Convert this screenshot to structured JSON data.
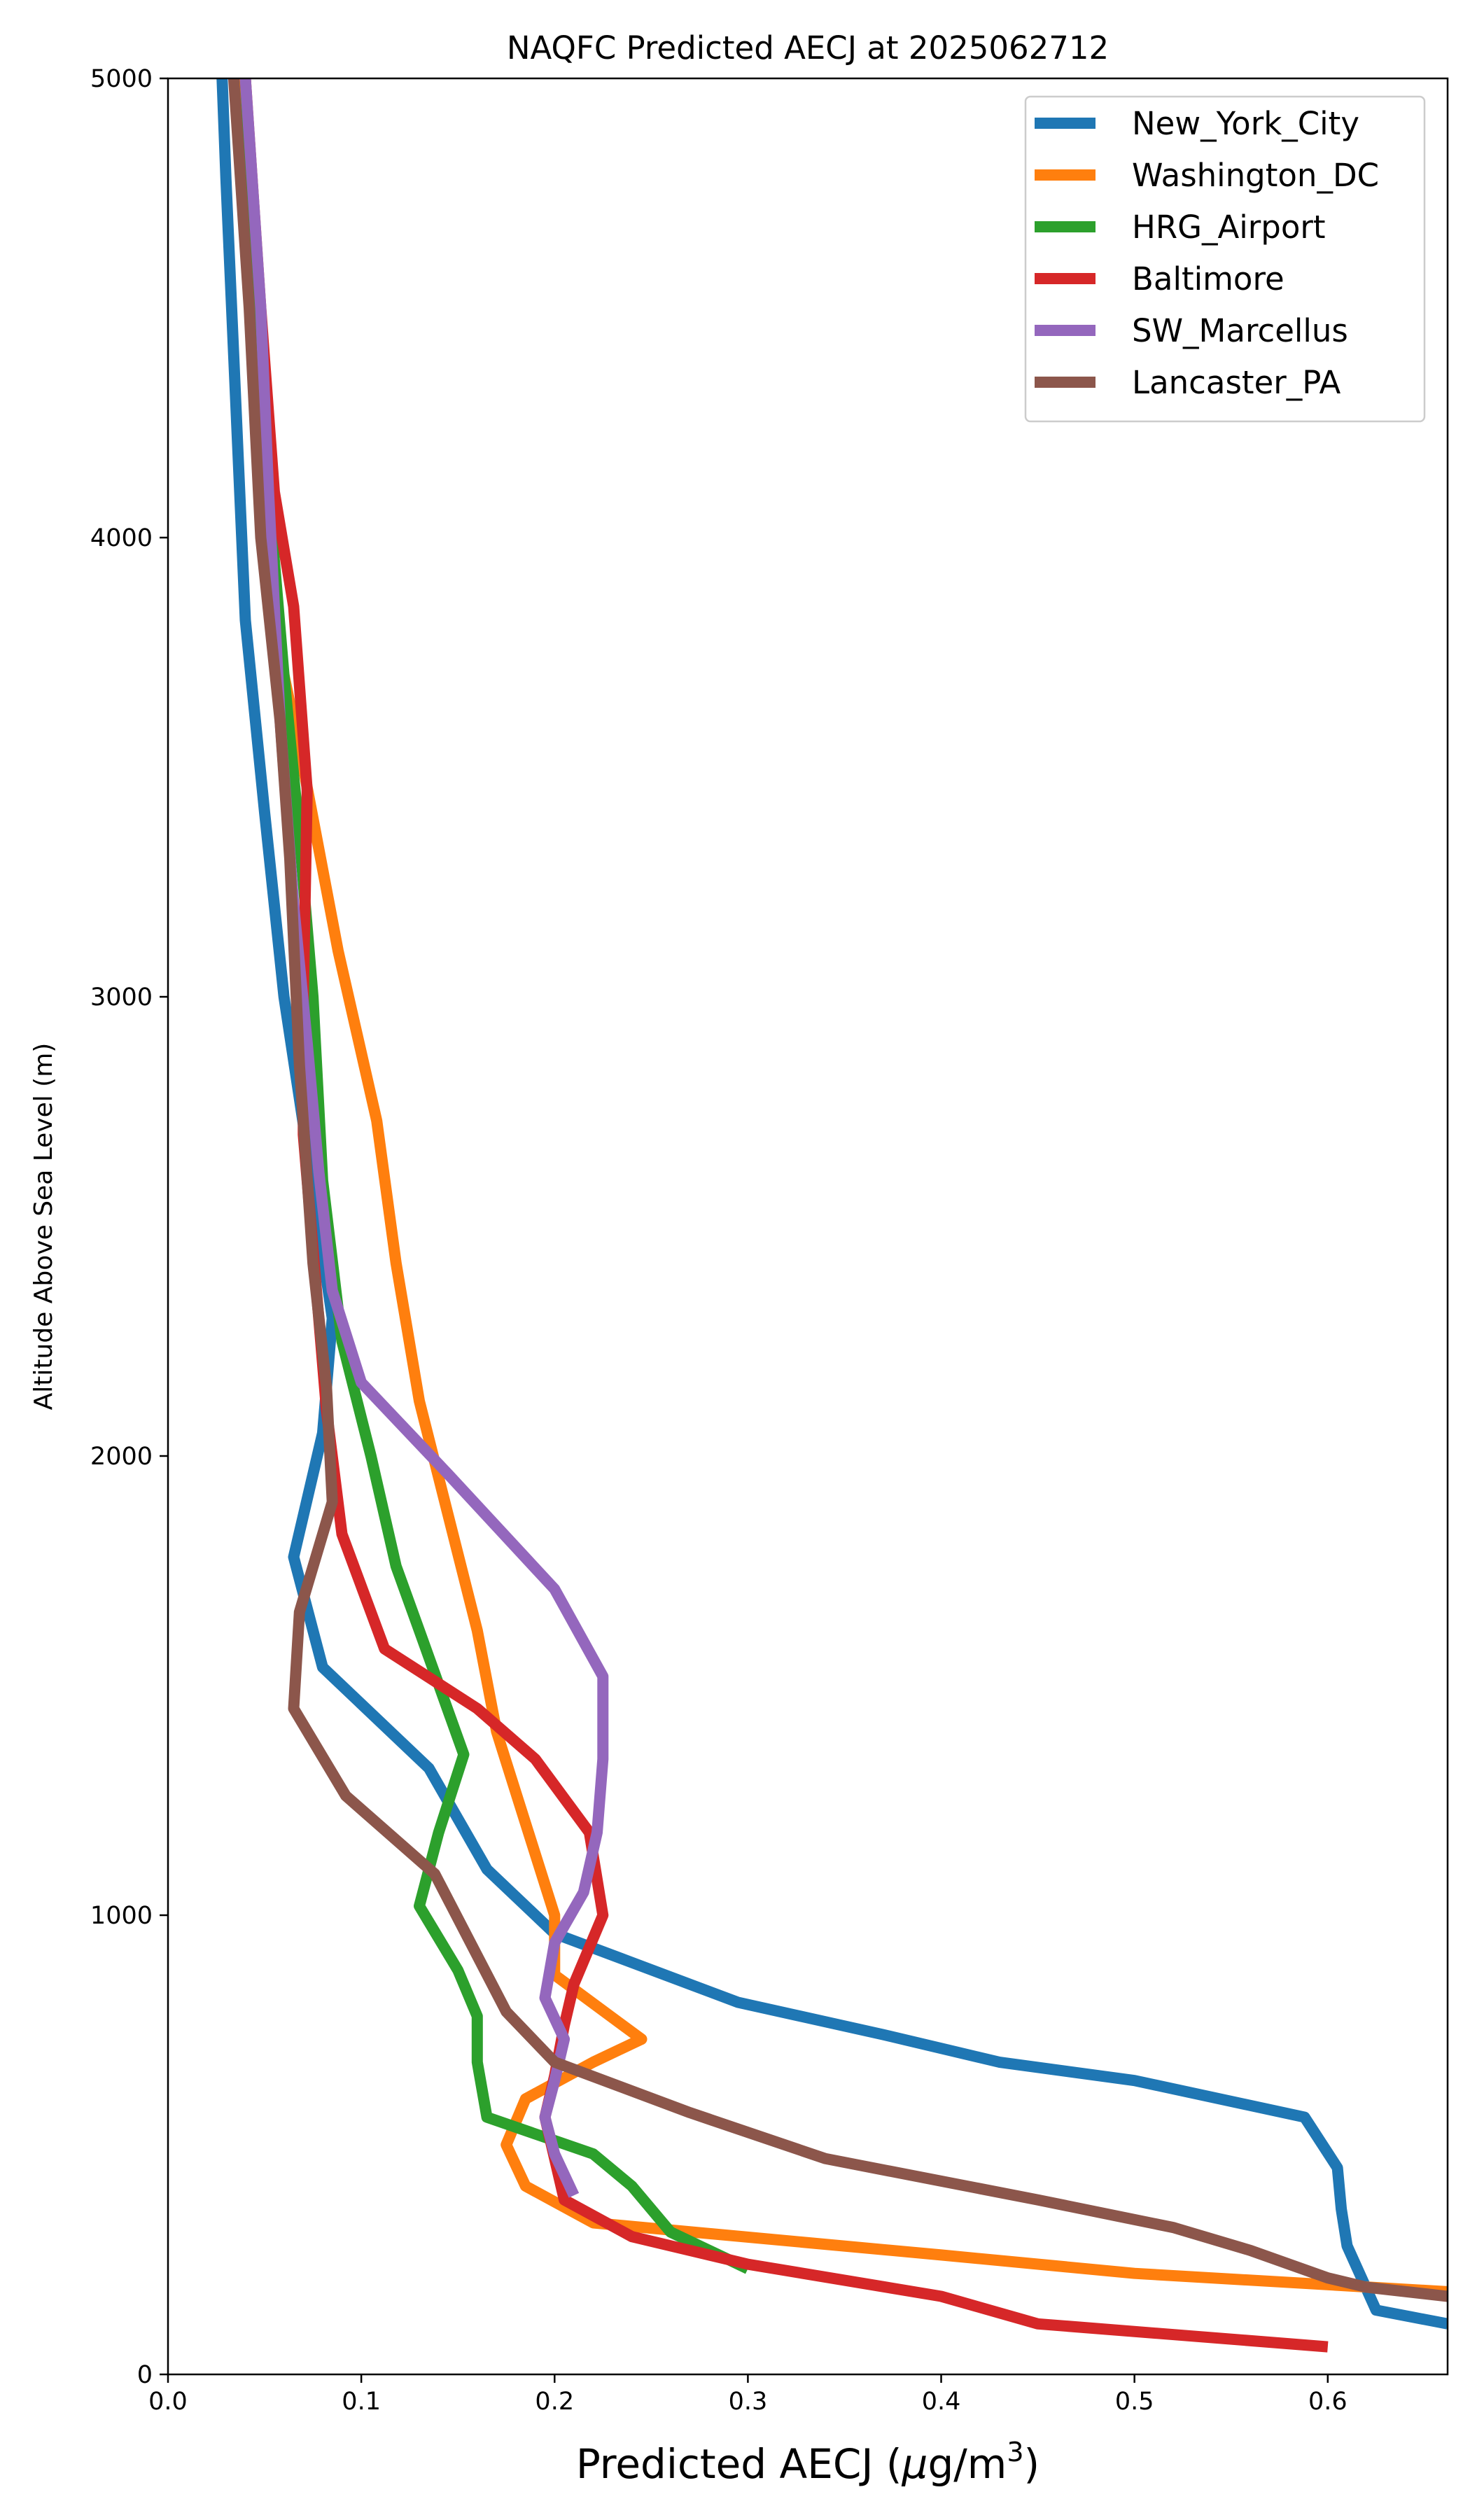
{
  "chart_data": {
    "type": "line",
    "title": "NAQFC Predicted AECJ at 2025062712",
    "xlabel_main": "Predicted AECJ (",
    "xlabel_mu": "μ",
    "xlabel_unit": "g/m",
    "xlabel_sup": "3",
    "xlabel_close": ")",
    "ylabel": "Altitude Above Sea Level (m)",
    "xlim": [
      0.0,
      0.662
    ],
    "ylim": [
      0,
      5000
    ],
    "xticks": [
      "0.0",
      "0.1",
      "0.2",
      "0.3",
      "0.4",
      "0.5",
      "0.6"
    ],
    "xtick_values": [
      0.0,
      0.1,
      0.2,
      0.3,
      0.4,
      0.5,
      0.6
    ],
    "yticks": [
      "0",
      "1000",
      "2000",
      "3000",
      "4000",
      "5000"
    ],
    "ytick_values": [
      0,
      1000,
      2000,
      3000,
      4000,
      5000
    ],
    "legend_position": "top-right",
    "series": [
      {
        "name": "New_York_City",
        "color": "#1f77b4",
        "points": [
          [
            0.662,
            110
          ],
          [
            0.625,
            140
          ],
          [
            0.61,
            280
          ],
          [
            0.607,
            360
          ],
          [
            0.605,
            450
          ],
          [
            0.588,
            560
          ],
          [
            0.5,
            640
          ],
          [
            0.43,
            680
          ],
          [
            0.37,
            740
          ],
          [
            0.295,
            810
          ],
          [
            0.2,
            960
          ],
          [
            0.165,
            1100
          ],
          [
            0.135,
            1320
          ],
          [
            0.08,
            1540
          ],
          [
            0.065,
            1780
          ],
          [
            0.08,
            2050
          ],
          [
            0.085,
            2300
          ],
          [
            0.078,
            2500
          ],
          [
            0.06,
            3000
          ],
          [
            0.05,
            3400
          ],
          [
            0.04,
            3820
          ],
          [
            0.03,
            4780
          ],
          [
            0.028,
            5000
          ]
        ]
      },
      {
        "name": "Washington_DC",
        "color": "#ff7f0e",
        "points": [
          [
            0.662,
            180
          ],
          [
            0.5,
            220
          ],
          [
            0.4,
            260
          ],
          [
            0.22,
            330
          ],
          [
            0.185,
            410
          ],
          [
            0.175,
            500
          ],
          [
            0.185,
            600
          ],
          [
            0.22,
            680
          ],
          [
            0.245,
            730
          ],
          [
            0.2,
            870
          ],
          [
            0.2,
            1000
          ],
          [
            0.185,
            1200
          ],
          [
            0.17,
            1400
          ],
          [
            0.16,
            1620
          ],
          [
            0.13,
            2120
          ],
          [
            0.118,
            2420
          ],
          [
            0.108,
            2730
          ],
          [
            0.088,
            3100
          ],
          [
            0.07,
            3500
          ],
          [
            0.055,
            3800
          ],
          [
            0.048,
            4100
          ],
          [
            0.045,
            4500
          ],
          [
            0.038,
            5000
          ]
        ]
      },
      {
        "name": "HRG_Airport",
        "color": "#2ca02c",
        "points": [
          [
            0.3,
            230
          ],
          [
            0.26,
            310
          ],
          [
            0.24,
            410
          ],
          [
            0.22,
            480
          ],
          [
            0.165,
            560
          ],
          [
            0.16,
            680
          ],
          [
            0.16,
            780
          ],
          [
            0.15,
            880
          ],
          [
            0.13,
            1020
          ],
          [
            0.14,
            1180
          ],
          [
            0.153,
            1350
          ],
          [
            0.13,
            1620
          ],
          [
            0.118,
            1760
          ],
          [
            0.105,
            2000
          ],
          [
            0.09,
            2250
          ],
          [
            0.08,
            2600
          ],
          [
            0.075,
            3000
          ],
          [
            0.068,
            3350
          ],
          [
            0.06,
            3700
          ],
          [
            0.05,
            4200
          ],
          [
            0.045,
            4600
          ],
          [
            0.04,
            5000
          ]
        ]
      },
      {
        "name": "Baltimore",
        "color": "#d62728",
        "points": [
          [
            0.6,
            60
          ],
          [
            0.45,
            110
          ],
          [
            0.4,
            170
          ],
          [
            0.3,
            240
          ],
          [
            0.24,
            300
          ],
          [
            0.205,
            380
          ],
          [
            0.195,
            560
          ],
          [
            0.2,
            650
          ],
          [
            0.205,
            760
          ],
          [
            0.21,
            850
          ],
          [
            0.225,
            1000
          ],
          [
            0.218,
            1180
          ],
          [
            0.19,
            1340
          ],
          [
            0.16,
            1450
          ],
          [
            0.112,
            1580
          ],
          [
            0.09,
            1830
          ],
          [
            0.082,
            2100
          ],
          [
            0.07,
            2700
          ],
          [
            0.07,
            3000
          ],
          [
            0.072,
            3450
          ],
          [
            0.065,
            3850
          ],
          [
            0.055,
            4100
          ],
          [
            0.048,
            4500
          ],
          [
            0.04,
            5000
          ]
        ]
      },
      {
        "name": "SW_Marcellus",
        "color": "#9467bd",
        "points": [
          [
            0.21,
            390
          ],
          [
            0.2,
            480
          ],
          [
            0.195,
            560
          ],
          [
            0.2,
            640
          ],
          [
            0.205,
            730
          ],
          [
            0.195,
            820
          ],
          [
            0.2,
            940
          ],
          [
            0.215,
            1050
          ],
          [
            0.222,
            1180
          ],
          [
            0.225,
            1340
          ],
          [
            0.225,
            1520
          ],
          [
            0.2,
            1710
          ],
          [
            0.145,
            1960
          ],
          [
            0.1,
            2160
          ],
          [
            0.085,
            2360
          ],
          [
            0.078,
            2620
          ],
          [
            0.072,
            2900
          ],
          [
            0.065,
            3200
          ],
          [
            0.058,
            3600
          ],
          [
            0.052,
            4100
          ],
          [
            0.048,
            4500
          ],
          [
            0.04,
            5000
          ]
        ]
      },
      {
        "name": "Lancaster_PA",
        "color": "#8c564b",
        "points": [
          [
            0.662,
            170
          ],
          [
            0.62,
            190
          ],
          [
            0.6,
            210
          ],
          [
            0.56,
            270
          ],
          [
            0.52,
            320
          ],
          [
            0.45,
            380
          ],
          [
            0.34,
            470
          ],
          [
            0.27,
            570
          ],
          [
            0.2,
            680
          ],
          [
            0.175,
            790
          ],
          [
            0.138,
            1090
          ],
          [
            0.092,
            1260
          ],
          [
            0.065,
            1450
          ],
          [
            0.068,
            1660
          ],
          [
            0.085,
            1900
          ],
          [
            0.082,
            2150
          ],
          [
            0.075,
            2420
          ],
          [
            0.068,
            2850
          ],
          [
            0.063,
            3300
          ],
          [
            0.058,
            3600
          ],
          [
            0.048,
            4000
          ],
          [
            0.042,
            4500
          ],
          [
            0.034,
            5000
          ]
        ]
      }
    ]
  }
}
